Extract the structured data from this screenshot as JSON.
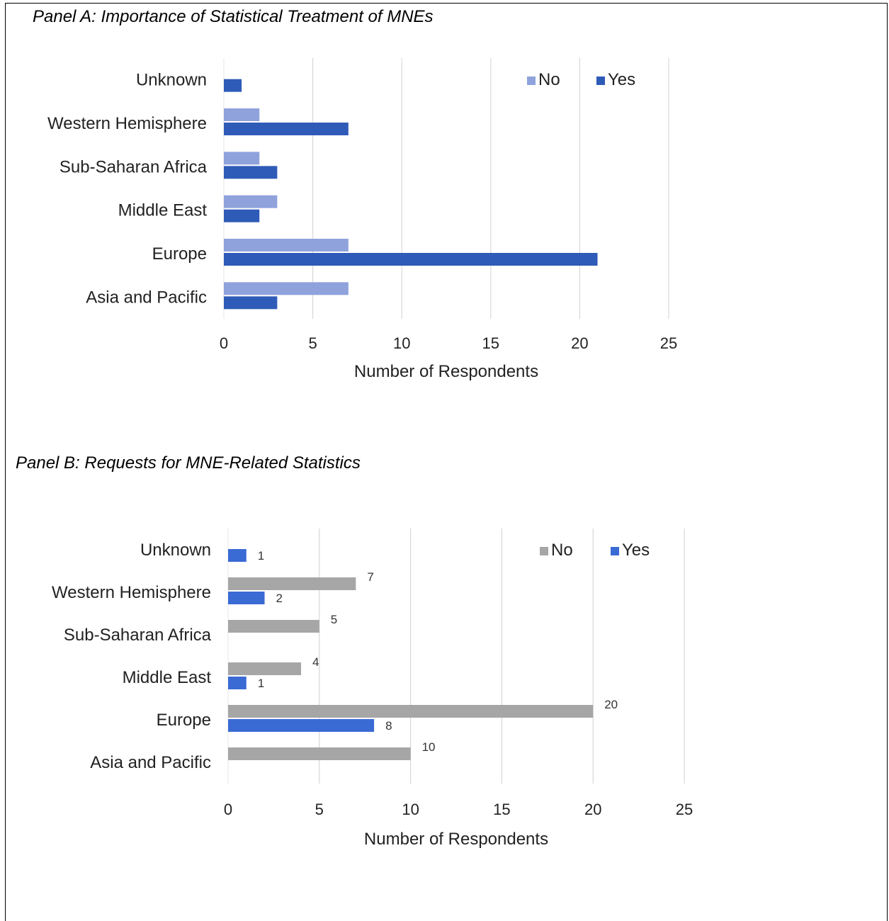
{
  "panel_a_title": "Panel A: Importance of Statistical Treatment of MNEs",
  "panel_b_title": "Panel B: Requests for MNE-Related Statistics",
  "colors": {
    "a_no": "#8FA2DC",
    "a_yes": "#2F5BB8",
    "b_no": "#A6A6A6",
    "b_yes": "#3A6AD4",
    "grid": "#D0D0D0"
  },
  "chart_data": [
    {
      "type": "bar",
      "orientation": "horizontal",
      "title": "Panel A: Importance of Statistical Treatment of MNEs",
      "categories": [
        "Asia and Pacific",
        "Europe",
        "Middle East",
        "Sub-Saharan Africa",
        "Western Hemisphere",
        "Unknown"
      ],
      "series": [
        {
          "name": "No",
          "values": [
            7,
            7,
            3,
            2,
            2,
            0
          ]
        },
        {
          "name": "Yes",
          "values": [
            3,
            21,
            2,
            3,
            7,
            1
          ]
        }
      ],
      "xlabel": "Number of Respondents",
      "ylabel": "",
      "xlim": [
        0,
        25
      ],
      "xticks": [
        "0",
        "5",
        "10",
        "15",
        "20",
        "25"
      ],
      "grid": true,
      "legend": "top-right",
      "data_labels": false
    },
    {
      "type": "bar",
      "orientation": "horizontal",
      "title": "Panel B: Requests for MNE-Related Statistics",
      "categories": [
        "Asia and Pacific",
        "Europe",
        "Middle East",
        "Sub-Saharan Africa",
        "Western Hemisphere",
        "Unknown"
      ],
      "series": [
        {
          "name": "No",
          "values": [
            10,
            20,
            4,
            5,
            7,
            0
          ]
        },
        {
          "name": "Yes",
          "values": [
            0,
            8,
            1,
            0,
            2,
            1
          ]
        }
      ],
      "xlabel": "Number of Respondents",
      "ylabel": "",
      "xlim": [
        0,
        25
      ],
      "xticks": [
        "0",
        "5",
        "10",
        "15",
        "20",
        "25"
      ],
      "grid": true,
      "legend": "top-right",
      "data_labels": true
    }
  ]
}
